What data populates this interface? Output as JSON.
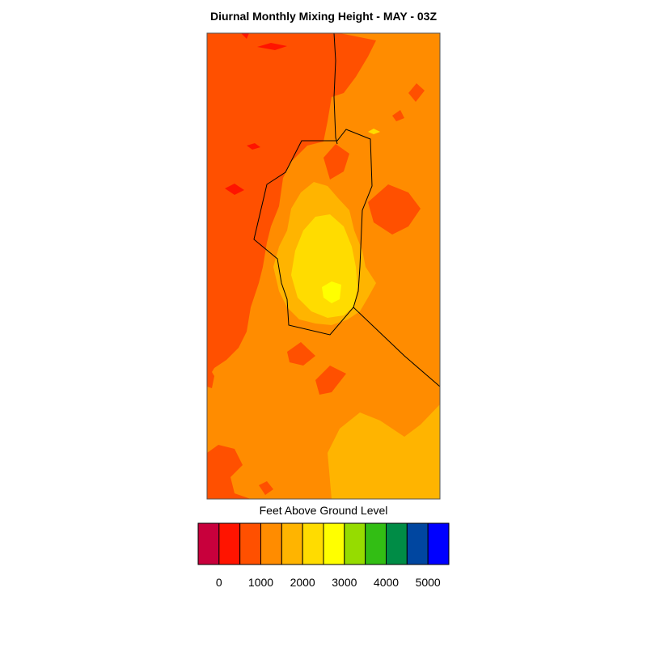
{
  "title": "Diurnal Monthly Mixing Height - MAY - 03Z",
  "colorbar": {
    "label": "Feet Above Ground Level",
    "colors": [
      "#c8003c",
      "#ff1400",
      "#ff5000",
      "#ff8c00",
      "#ffb400",
      "#ffdc00",
      "#ffff00",
      "#96dc00",
      "#32be14",
      "#008c46",
      "#0046a0",
      "#0000ff"
    ],
    "ticks": [
      {
        "value": 0,
        "label": "0"
      },
      {
        "value": 1000,
        "label": "1000"
      },
      {
        "value": 2000,
        "label": "2000"
      },
      {
        "value": 3000,
        "label": "3000"
      },
      {
        "value": 4000,
        "label": "4000"
      },
      {
        "value": 5000,
        "label": "5000"
      }
    ]
  },
  "legend_colors": {
    "below_0": "#c8003c",
    "0_500": "#ff1400",
    "500_1000": "#ff5000",
    "1000_1500": "#ff8c00",
    "1500_2000": "#ffb400",
    "2000_2500": "#ffdc00",
    "2500_3000": "#ffff00"
  }
}
